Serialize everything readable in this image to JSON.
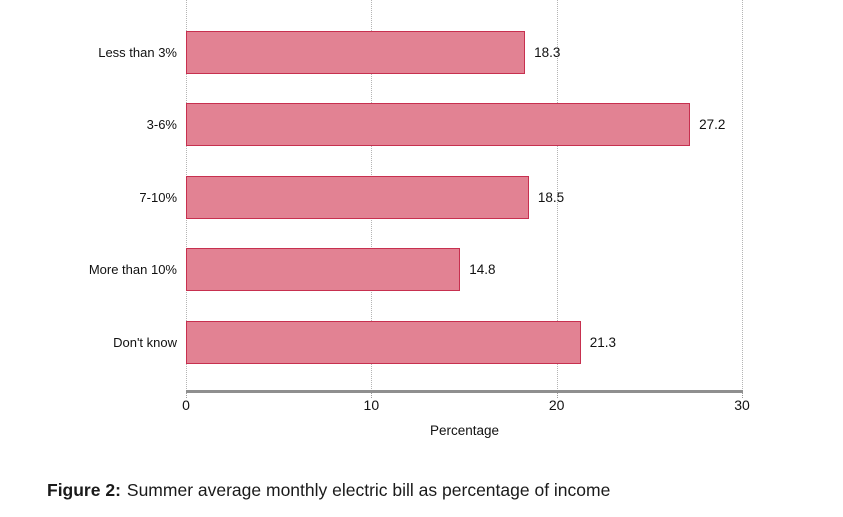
{
  "chart_data": {
    "type": "bar",
    "orientation": "horizontal",
    "categories": [
      "Less than 3%",
      "3-6%",
      "7-10%",
      "More than 10%",
      "Don't know"
    ],
    "values": [
      18.3,
      27.2,
      18.5,
      14.8,
      21.3
    ],
    "value_labels": [
      "18.3",
      "27.2",
      "18.5",
      "14.8",
      "21.3"
    ],
    "title": "",
    "xlabel": "Percentage",
    "ylabel": "",
    "xlim": [
      0,
      30
    ],
    "xticks": [
      0,
      10,
      20,
      30
    ],
    "grid": "vertical dotted gridlines at each x tick",
    "legend": "none",
    "colors": {
      "bar_fill": "#e28293",
      "bar_border": "#c7304f",
      "axis_line": "#8f8f8f",
      "gridline": "#b4b4b4",
      "text": "#111111",
      "background": "#ffffff"
    }
  },
  "caption": {
    "prefix": "Figure 2:",
    "text": "Summer average monthly electric bill as percentage of income"
  }
}
